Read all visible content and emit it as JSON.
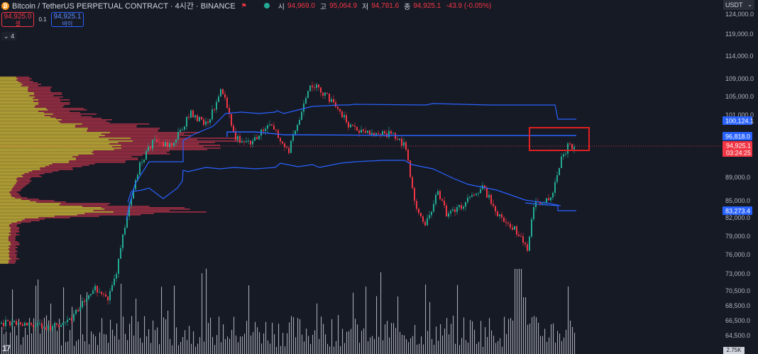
{
  "header": {
    "title": "Bitcoin / TetherUS PERPETUAL CONTRACT · 4시간 · BINANCE",
    "logo_letter": "₿",
    "ohlc": [
      {
        "label": "시",
        "value": "94,969.0"
      },
      {
        "label": "고",
        "value": "95,064.9"
      },
      {
        "label": "저",
        "value": "94,781.6"
      },
      {
        "label": "종",
        "value": "94,925.1"
      }
    ],
    "change": "-43.9 (-0.05%)"
  },
  "trade": {
    "sell_price": "94,925.0",
    "sell_label": "셀",
    "spread": "0.1",
    "buy_price": "94,925.1",
    "buy_label": "바이"
  },
  "indicators_toggle": "4",
  "currency": "USDT",
  "axis": {
    "ticks": [
      "124,000.0",
      "119,000.0",
      "114,000.0",
      "109,000.0",
      "105,000.0",
      "101,000.0",
      "89,000.0",
      "85,000.0",
      "82,000.0",
      "79,000.0",
      "76,000.0",
      "73,000.0",
      "70,500.0",
      "68,500.0",
      "66,500.0",
      "64,500.0"
    ],
    "price_tags": [
      {
        "value": "100,124.1",
        "color": "#2962ff"
      },
      {
        "value": "96,818.0",
        "color": "#2962ff"
      },
      {
        "value": "83,273.4",
        "color": "#2962ff"
      }
    ],
    "last_price": {
      "value": "94,925.1",
      "timer": "03:24:25",
      "color": "#f23645"
    },
    "volume_tag": "2.75K"
  },
  "colors": {
    "up": "#22ab94",
    "down": "#f23645",
    "blue": "#2962ff",
    "vp_yellow": "#c8c832",
    "vp_red": "#b8324a",
    "highlight": "#e02020"
  },
  "tv_logo": "17"
}
